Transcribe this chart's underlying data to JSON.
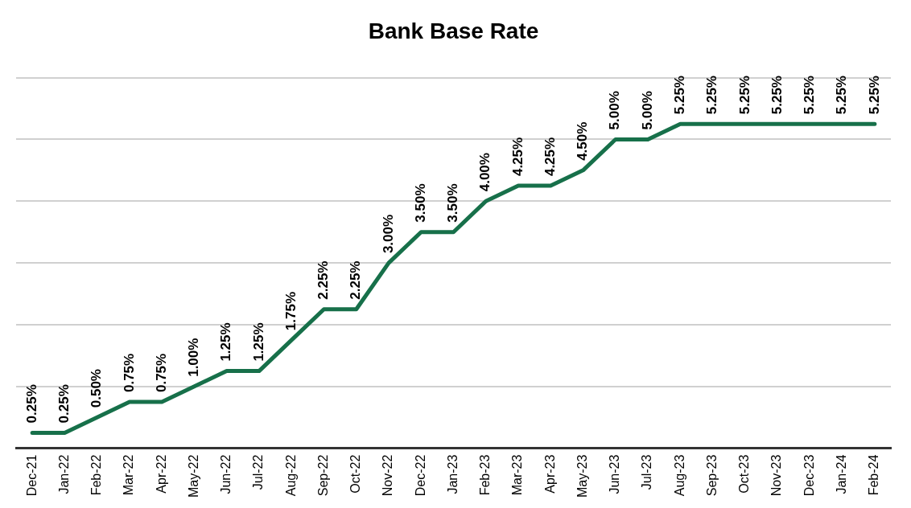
{
  "chart_data": {
    "type": "line",
    "title": "Bank Base Rate",
    "categories": [
      "Dec-21",
      "Jan-22",
      "Feb-22",
      "Mar-22",
      "Apr-22",
      "May-22",
      "Jun-22",
      "Jul-22",
      "Aug-22",
      "Sep-22",
      "Oct-22",
      "Nov-22",
      "Dec-22",
      "Jan-23",
      "Feb-23",
      "Mar-23",
      "Apr-23",
      "May-23",
      "Jun-23",
      "Jul-23",
      "Aug-23",
      "Sep-23",
      "Oct-23",
      "Nov-23",
      "Dec-23",
      "Jan-24",
      "Feb-24"
    ],
    "series": [
      {
        "color": "#17704a",
        "values": [
          0.25,
          0.25,
          0.5,
          0.75,
          0.75,
          1.0,
          1.25,
          1.25,
          1.75,
          2.25,
          2.25,
          3.0,
          3.5,
          3.5,
          4.0,
          4.25,
          4.25,
          4.5,
          5.0,
          5.0,
          5.25,
          5.25,
          5.25,
          5.25,
          5.25,
          5.25,
          5.25
        ],
        "value_labels": [
          "0.25%",
          "0.25%",
          "0.50%",
          "0.75%",
          "0.75%",
          "1.00%",
          "1.25%",
          "1.25%",
          "1.75%",
          "2.25%",
          "2.25%",
          "3.00%",
          "3.50%",
          "3.50%",
          "4.00%",
          "4.25%",
          "4.25%",
          "4.50%",
          "5.00%",
          "5.00%",
          "5.25%",
          "5.25%",
          "5.25%",
          "5.25%",
          "5.25%",
          "5.25%",
          "5.25%"
        ]
      }
    ],
    "ylim": [
      0,
      6
    ],
    "yticks": [
      {
        "value": 0,
        "label": null
      },
      {
        "value": 1,
        "label": null
      },
      {
        "value": 2,
        "label": null
      },
      {
        "value": 3,
        "label": null
      },
      {
        "value": 4,
        "label": null
      },
      {
        "value": 5,
        "label": null
      },
      {
        "value": 6,
        "label": null
      }
    ],
    "grid": "y",
    "legend": false,
    "marker": "none",
    "line_style": "solid",
    "tick_labels": "x"
  }
}
